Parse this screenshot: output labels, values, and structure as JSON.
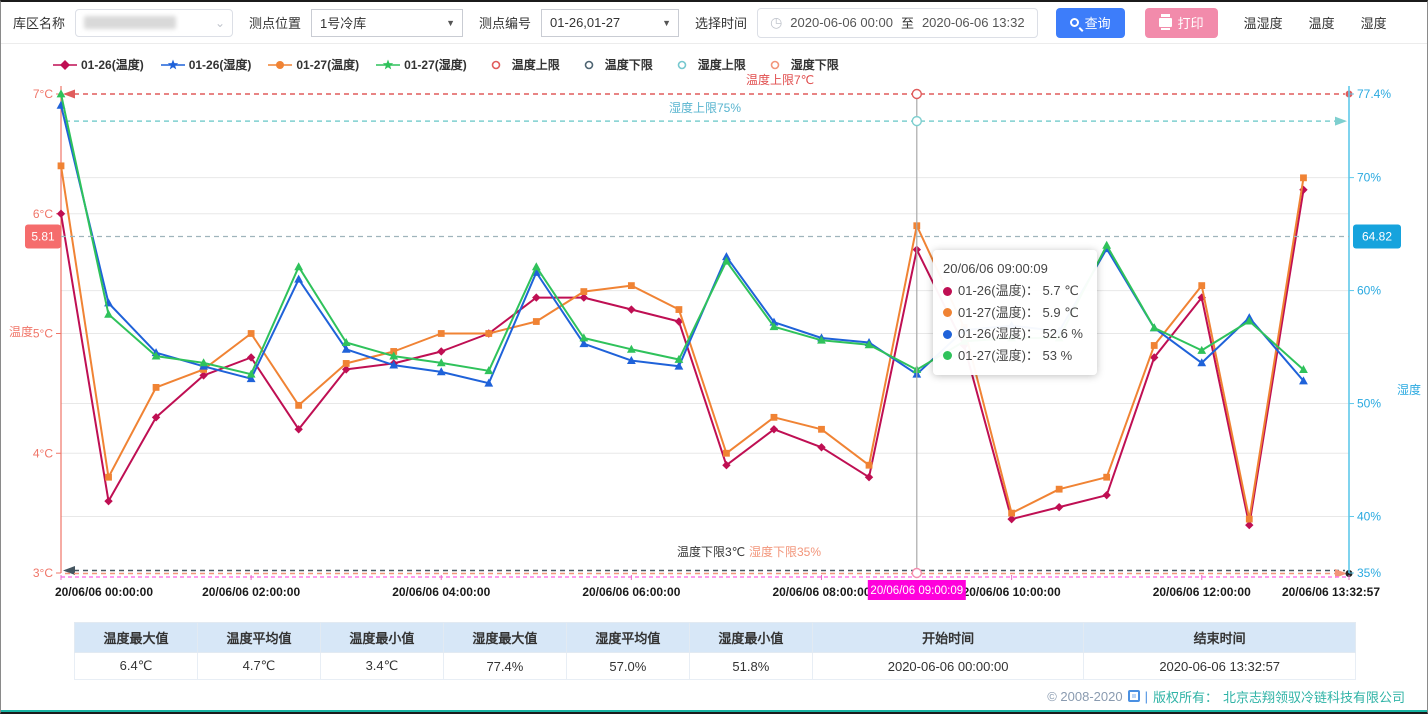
{
  "toolbar": {
    "warehouse_label": "库区名称",
    "warehouse_value": "",
    "location_label": "测点位置",
    "location_value": "1号冷库",
    "point_label": "测点编号",
    "point_value": "01-26,01-27",
    "time_label": "选择时间",
    "time_start": "2020-06-06 00:00",
    "time_separator": "至",
    "time_end": "2020-06-06 13:32",
    "query_label": "查询",
    "print_label": "打印",
    "tabs": [
      {
        "label": "温湿度"
      },
      {
        "label": "温度"
      },
      {
        "label": "湿度"
      }
    ]
  },
  "legend": [
    {
      "label": "01-26(温度)",
      "color": "#bf0f53",
      "symbol": "diamond",
      "line": true
    },
    {
      "label": "01-26(湿度)",
      "color": "#1f62d9",
      "symbol": "star",
      "line": true
    },
    {
      "label": "01-27(温度)",
      "color": "#f08334",
      "symbol": "circle",
      "line": true
    },
    {
      "label": "01-27(湿度)",
      "color": "#2fc25b",
      "symbol": "star",
      "line": true
    },
    {
      "label": "温度上限",
      "color": "#e05c5c",
      "symbol": "ring",
      "line": false
    },
    {
      "label": "温度下限",
      "color": "#4e6472",
      "symbol": "ring",
      "line": false
    },
    {
      "label": "湿度上限",
      "color": "#76c8cf",
      "symbol": "ring",
      "line": false
    },
    {
      "label": "湿度下限",
      "color": "#f2957a",
      "symbol": "ring",
      "line": false
    }
  ],
  "chart_data": {
    "type": "line",
    "x_unit": "hours_since_2020-06-06T00:00",
    "x": [
      0,
      0.5,
      1,
      1.5,
      2,
      2.5,
      3,
      3.5,
      4,
      4.5,
      5,
      5.5,
      6,
      6.5,
      7,
      7.5,
      8,
      8.5,
      9.0025,
      9.5,
      10,
      10.5,
      11,
      11.5,
      12,
      12.5,
      13.07
    ],
    "series": [
      {
        "name": "01-26(温度)",
        "axis": "temp",
        "color": "#bf0f53",
        "marker": "diamond",
        "values": [
          6.0,
          3.6,
          4.3,
          4.65,
          4.8,
          4.2,
          4.7,
          4.75,
          4.85,
          5.0,
          5.3,
          5.3,
          5.2,
          5.1,
          3.9,
          4.2,
          4.05,
          3.8,
          5.7,
          4.9,
          3.45,
          3.55,
          3.65,
          4.8,
          5.3,
          3.4,
          6.2
        ]
      },
      {
        "name": "01-27(温度)",
        "axis": "temp",
        "color": "#f08334",
        "marker": "rect",
        "values": [
          6.4,
          3.8,
          4.55,
          4.7,
          5.0,
          4.4,
          4.75,
          4.85,
          5.0,
          5.0,
          5.1,
          5.35,
          5.4,
          5.2,
          4.0,
          4.3,
          4.2,
          3.9,
          5.9,
          5.05,
          3.5,
          3.7,
          3.8,
          4.9,
          5.4,
          3.45,
          6.3
        ]
      },
      {
        "name": "01-26(湿度)",
        "axis": "hum",
        "color": "#1f62d9",
        "marker": "triangle",
        "values": [
          76.4,
          58.9,
          54.5,
          53.3,
          52.2,
          61.0,
          54.8,
          53.4,
          52.8,
          51.8,
          61.6,
          55.3,
          53.8,
          53.3,
          63.0,
          57.2,
          55.8,
          55.4,
          52.6,
          56.5,
          56.9,
          56.4,
          63.7,
          56.7,
          53.6,
          57.6,
          52.0
        ]
      },
      {
        "name": "01-27(湿度)",
        "axis": "hum",
        "color": "#2fc25b",
        "marker": "triangle",
        "values": [
          77.4,
          57.9,
          54.2,
          53.6,
          52.6,
          62.1,
          55.4,
          54.2,
          53.6,
          52.9,
          62.1,
          55.8,
          54.8,
          53.9,
          62.6,
          56.8,
          55.6,
          55.2,
          53.0,
          55.5,
          55.8,
          55.8,
          64.0,
          56.7,
          54.7,
          57.3,
          53.0
        ]
      }
    ],
    "y_axis_temp": {
      "name": "温度",
      "min": 3,
      "max": 7,
      "color": "#f07568",
      "ticks": [
        {
          "v": 7,
          "label": "7°C"
        },
        {
          "v": 6,
          "label": "6°C"
        },
        {
          "v": 5,
          "label": "5°C"
        },
        {
          "v": 4,
          "label": "4°C"
        },
        {
          "v": 3,
          "label": "3°C"
        }
      ]
    },
    "y_axis_hum": {
      "name": "湿度",
      "min": 35,
      "max": 77.4,
      "color": "#29a9e0",
      "ticks": [
        {
          "v": 77.4,
          "label": "77.4%"
        },
        {
          "v": 70,
          "label": "70%"
        },
        {
          "v": 60,
          "label": "60%"
        },
        {
          "v": 50,
          "label": "50%"
        },
        {
          "v": 40,
          "label": "40%"
        },
        {
          "v": 35,
          "label": "35%"
        }
      ]
    },
    "x_axis": {
      "ticks": [
        {
          "h": 0,
          "label": "20/06/06 00:00:00"
        },
        {
          "h": 2,
          "label": "20/06/06 02:00:00"
        },
        {
          "h": 4,
          "label": "20/06/06 04:00:00"
        },
        {
          "h": 6,
          "label": "20/06/06 06:00:00"
        },
        {
          "h": 8,
          "label": "20/06/06 08:00:00"
        },
        {
          "h": 10,
          "label": "20/06/06 10:00:00"
        },
        {
          "h": 12,
          "label": "20/06/06 12:00:00"
        },
        {
          "h": 13.549,
          "label": "20/06/06 13:32:57"
        }
      ],
      "highlight": {
        "h": 9.0025,
        "label": "20/06/06 09:00:09",
        "bg": "#ff00dc",
        "fg": "#ffffff"
      }
    },
    "limit_lines": [
      {
        "name": "温度上限",
        "axis": "temp",
        "value": 7,
        "label": "温度上限7℃",
        "color": "#e05c5c",
        "label_color": "#e04c4c",
        "arrow": "left",
        "end_dot": "right"
      },
      {
        "name": "湿度上限",
        "axis": "hum",
        "value": 75,
        "label": "湿度上限75%",
        "color": "#7ecfcf",
        "label_color": "#58b4cf",
        "arrow": "right",
        "end_dot": "none"
      },
      {
        "name": "温度下限",
        "axis": "temp",
        "value": 3,
        "label": "温度下限3℃",
        "color": "#44555f",
        "label_color": "#333333",
        "arrow": "left",
        "end_dot": "none"
      },
      {
        "name": "湿度下限",
        "axis": "hum",
        "value": 35,
        "label": "湿度下限35%",
        "color": "#f2957a",
        "label_color": "#f2957a",
        "arrow": "right",
        "end_dot": "right"
      }
    ],
    "crosshair": {
      "h": 9.0025,
      "temp_pointer_value": "5.81",
      "temp_badge_color": "#f56c6c",
      "hum_pointer_value": "64.82",
      "hum_badge_color": "#16a3dd"
    },
    "tooltip": {
      "title": "20/06/06 09:00:09",
      "rows": [
        {
          "name": "01-26(温度)",
          "value": "5.7 ℃",
          "color": "#bf0f53"
        },
        {
          "name": "01-27(温度)",
          "value": "5.9 ℃",
          "color": "#f08334"
        },
        {
          "name": "01-26(湿度)",
          "value": "52.6 %",
          "color": "#1f62d9"
        },
        {
          "name": "01-27(湿度)",
          "value": "53 %",
          "color": "#2fc25b"
        }
      ]
    }
  },
  "stats_table": {
    "headers": [
      "温度最大值",
      "温度平均值",
      "温度最小值",
      "湿度最大值",
      "湿度平均值",
      "湿度最小值",
      "开始时间",
      "结束时间"
    ],
    "values": [
      "6.4℃",
      "4.7℃",
      "3.4℃",
      "77.4%",
      "57.0%",
      "51.8%",
      "2020-06-06 00:00:00",
      "2020-06-06 13:32:57"
    ]
  },
  "footer": {
    "copyright": "© 2008-2020",
    "divider": "|",
    "rights_label": "版权所有：",
    "company": "北京志翔领驭冷链科技有限公司"
  }
}
